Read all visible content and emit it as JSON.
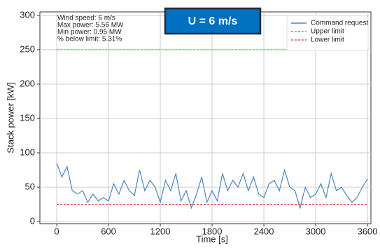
{
  "chart_data": {
    "type": "line",
    "title": "U = 6 m/s",
    "x_label": "Time [s]",
    "y_label": "Stack power [kW]",
    "annotations": [
      "Wind speed: 6 m/s",
      "Max power: 5.56 MW",
      "Min power: 0.95 MW",
      "% below limit: 5.31%"
    ],
    "xlim": [
      -195,
      3640
    ],
    "ylim": [
      -3,
      305
    ],
    "xticks": [
      0,
      600,
      1200,
      1800,
      2400,
      3000,
      3600
    ],
    "yticks": [
      0,
      50,
      100,
      150,
      200,
      250,
      300
    ],
    "grid": true,
    "legend": "upper right",
    "series": [
      {
        "name": "Command request",
        "color": "#4a86c0",
        "style": "solid",
        "x": [
          0,
          60,
          120,
          180,
          240,
          300,
          360,
          420,
          480,
          540,
          600,
          660,
          720,
          780,
          840,
          900,
          960,
          1020,
          1080,
          1140,
          1200,
          1260,
          1320,
          1380,
          1440,
          1500,
          1560,
          1620,
          1680,
          1740,
          1800,
          1860,
          1920,
          1980,
          2040,
          2100,
          2160,
          2220,
          2280,
          2340,
          2400,
          2460,
          2520,
          2580,
          2640,
          2700,
          2760,
          2820,
          2880,
          2940,
          3000,
          3060,
          3120,
          3180,
          3240,
          3300,
          3360,
          3420,
          3480,
          3540,
          3600
        ],
        "values": [
          85,
          65,
          80,
          45,
          40,
          45,
          28,
          40,
          30,
          35,
          30,
          55,
          40,
          60,
          45,
          38,
          75,
          45,
          60,
          50,
          28,
          60,
          45,
          70,
          30,
          45,
          20,
          40,
          65,
          28,
          45,
          30,
          70,
          45,
          60,
          50,
          70,
          45,
          65,
          40,
          35,
          55,
          60,
          45,
          75,
          50,
          45,
          20,
          50,
          35,
          40,
          55,
          35,
          70,
          45,
          50,
          38,
          28,
          35,
          50,
          62
        ]
      },
      {
        "name": "Upper limit",
        "color": "#5cb85c",
        "style": "dashed",
        "x": [
          0,
          3600
        ],
        "values": [
          250,
          250
        ]
      },
      {
        "name": "Lower limit",
        "color": "#e05050",
        "style": "dashed",
        "x": [
          0,
          3600
        ],
        "values": [
          25,
          25
        ]
      }
    ]
  }
}
